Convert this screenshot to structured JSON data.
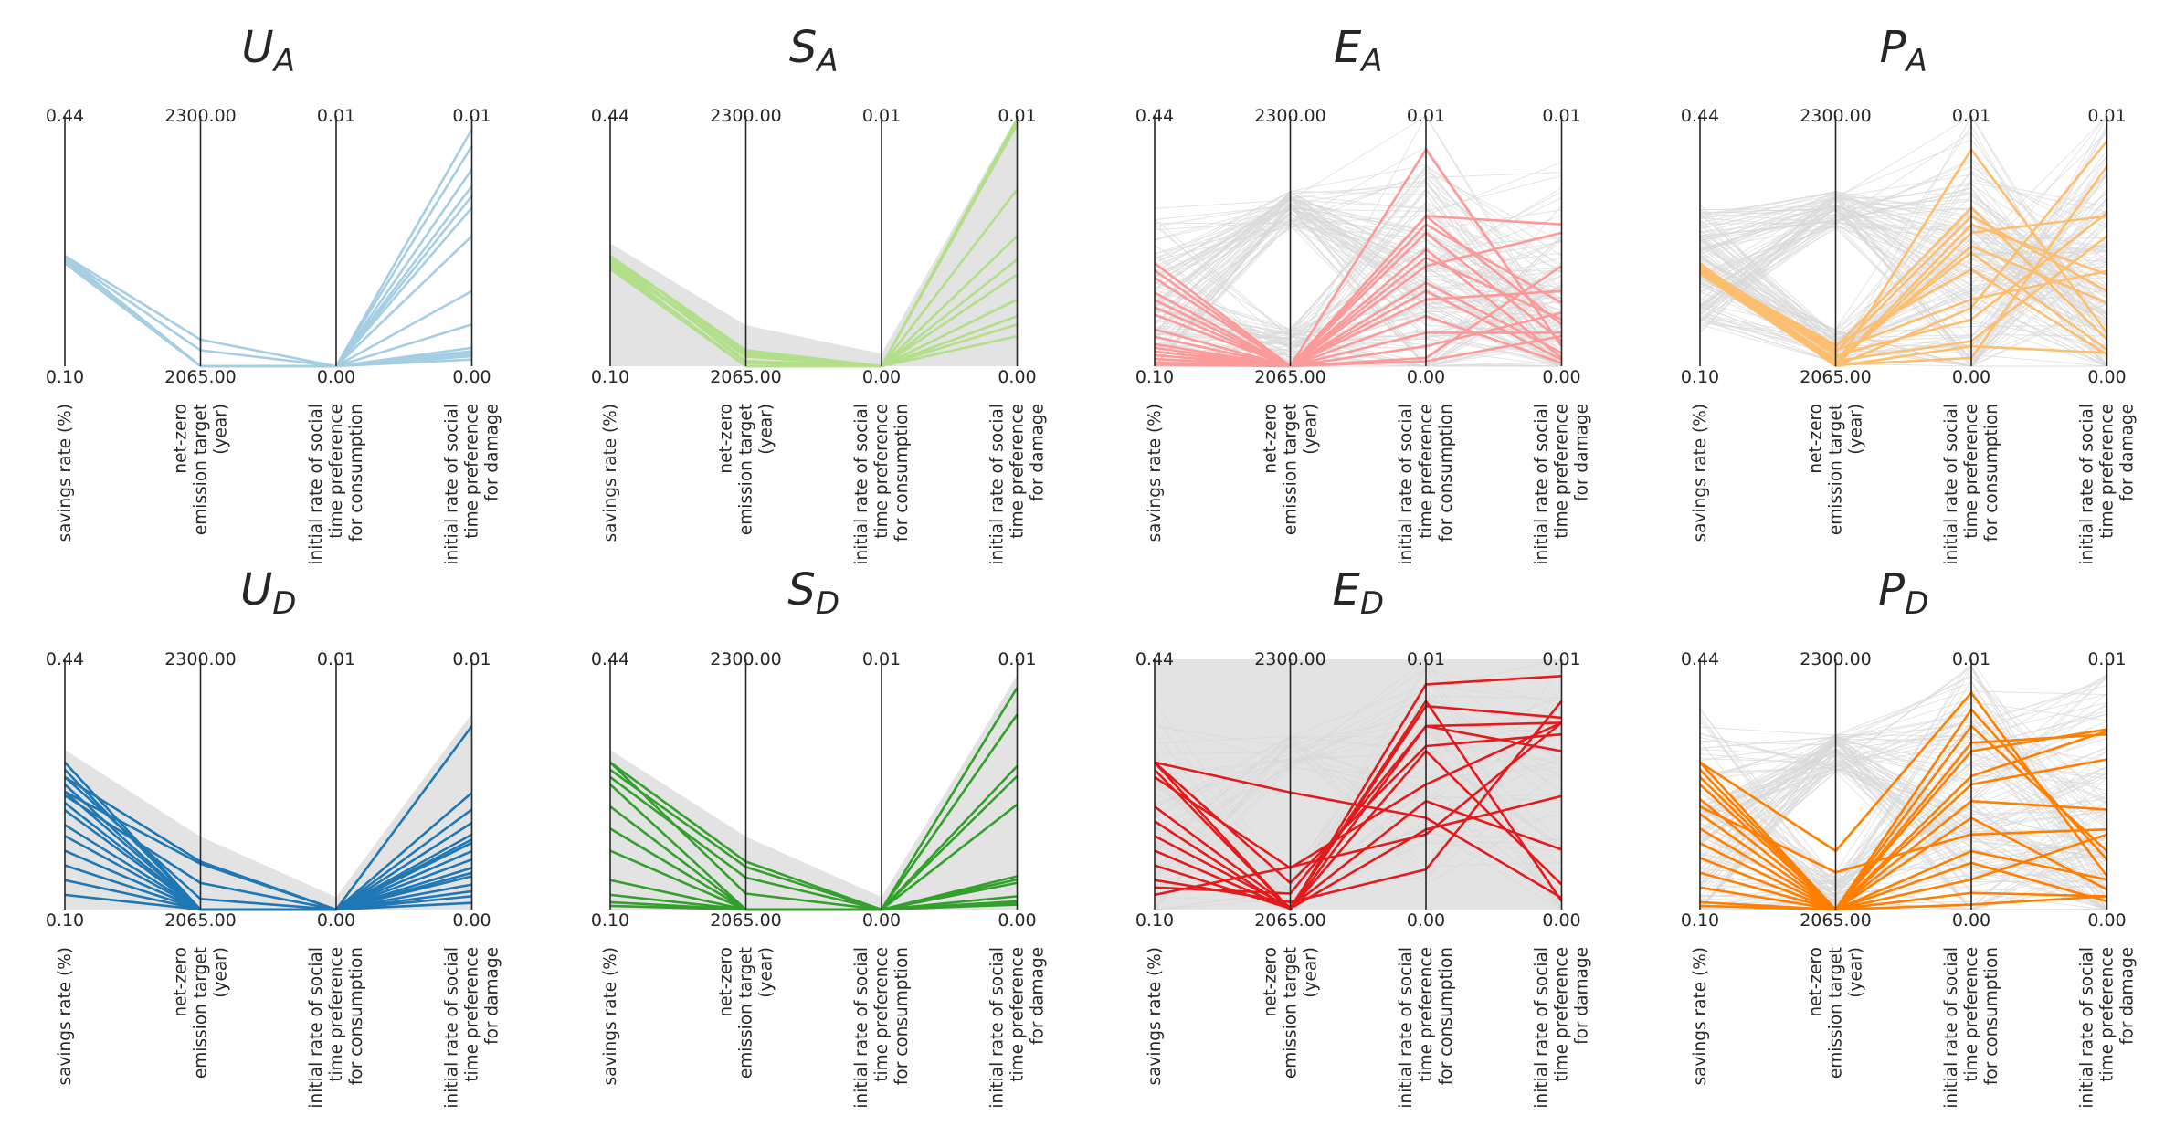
{
  "axes": [
    {
      "label_lines": [
        "savings rate (%)"
      ],
      "max_label": "0.44",
      "min_label": "0.10",
      "range": [
        0.1,
        0.44
      ]
    },
    {
      "label_lines": [
        "net-zero",
        "emission target",
        "(year)"
      ],
      "max_label": "2300.00",
      "min_label": "2065.00",
      "range": [
        2065,
        2300
      ]
    },
    {
      "label_lines": [
        "initial rate of social",
        "time preference",
        "for consumption"
      ],
      "max_label": "0.01",
      "min_label": "0.00",
      "range": [
        0.0,
        0.015
      ]
    },
    {
      "label_lines": [
        "initial rate of social",
        "time preference",
        "for damage"
      ],
      "max_label": "0.01",
      "min_label": "0.00",
      "range": [
        0.0,
        0.015
      ]
    }
  ],
  "chart_data": [
    {
      "type": "parallel-coordinates",
      "title_main": "U",
      "title_sub": "A",
      "color": "#a6cee3",
      "bg_style": "none",
      "lines": [
        [
          0.248,
          2065,
          0.0,
          0.0025
        ],
        [
          0.248,
          2065,
          0.0,
          0.0045
        ],
        [
          0.248,
          2065,
          0.0,
          0.0078
        ],
        [
          0.248,
          2065,
          0.0,
          0.0095
        ],
        [
          0.248,
          2065,
          0.0,
          0.0102
        ],
        [
          0.248,
          2065,
          0.0,
          0.0108
        ],
        [
          0.248,
          2065,
          0.0,
          0.0118
        ],
        [
          0.248,
          2065,
          0.0,
          0.0132
        ],
        [
          0.248,
          2065,
          0.0,
          0.0142
        ],
        [
          0.248,
          2065,
          0.0,
          0.0008
        ],
        [
          0.248,
          2065,
          0.0,
          0.0011
        ],
        [
          0.244,
          2065,
          0.0,
          0.0004
        ],
        [
          0.24,
          2065,
          0.0,
          0.0006
        ],
        [
          0.25,
          2090,
          0.0,
          0.0007
        ],
        [
          0.248,
          2080,
          0.0,
          0.0009
        ]
      ]
    },
    {
      "type": "parallel-coordinates",
      "title_main": "S",
      "title_sub": "A",
      "color": "#b2df8a",
      "bg_style": "fill",
      "lines": [
        [
          0.24,
          2080,
          0.0,
          0.0148
        ],
        [
          0.25,
          2080,
          0.0,
          0.0145
        ],
        [
          0.25,
          2078,
          0.0,
          0.0106
        ],
        [
          0.24,
          2076,
          0.0,
          0.0078
        ],
        [
          0.244,
          2074,
          0.0,
          0.0064
        ],
        [
          0.246,
          2070,
          0.0,
          0.0055
        ],
        [
          0.25,
          2068,
          0.0,
          0.004
        ],
        [
          0.24,
          2065,
          0.0,
          0.004
        ],
        [
          0.236,
          2065,
          0.0,
          0.003
        ],
        [
          0.232,
          2065,
          0.0,
          0.0018
        ],
        [
          0.24,
          2065,
          0.0,
          0.003
        ],
        [
          0.24,
          2065,
          0.0,
          0.0025
        ]
      ]
    },
    {
      "type": "parallel-coordinates",
      "title_main": "E",
      "title_sub": "A",
      "color": "#fb9a99",
      "bg_style": "lines",
      "lines": [
        [
          0.24,
          2065,
          0.013,
          0.0012
        ],
        [
          0.22,
          2065,
          0.009,
          0.0085
        ],
        [
          0.2,
          2065,
          0.008,
          0.0015
        ],
        [
          0.18,
          2065,
          0.006,
          0.008
        ],
        [
          0.17,
          2065,
          0.005,
          0.0008
        ],
        [
          0.15,
          2065,
          0.004,
          0.0045
        ],
        [
          0.14,
          2065,
          0.009,
          0.0025
        ],
        [
          0.13,
          2065,
          0.003,
          0.0002
        ],
        [
          0.125,
          2065,
          0.0085,
          0.0038
        ],
        [
          0.12,
          2065,
          0.0005,
          0.006
        ],
        [
          0.115,
          2065,
          0.002,
          0.002
        ],
        [
          0.11,
          2065,
          0.007,
          0.0005
        ],
        [
          0.105,
          2065,
          0.0003,
          0.0018
        ],
        [
          0.102,
          2065,
          0.0012,
          0.0032
        ],
        [
          0.23,
          2065,
          0.0045,
          0.0004
        ],
        [
          0.19,
          2065,
          0.0065,
          0.0028
        ]
      ]
    },
    {
      "type": "parallel-coordinates",
      "title_main": "P",
      "title_sub": "A",
      "color": "#fdbf6f",
      "bg_style": "lines",
      "lines": [
        [
          0.24,
          2065,
          0.013,
          0.002
        ],
        [
          0.24,
          2065,
          0.008,
          0.009
        ],
        [
          0.235,
          2062,
          0.0035,
          0.0135
        ],
        [
          0.23,
          2066,
          0.0005,
          0.012
        ],
        [
          0.23,
          2085,
          0.0058,
          0.0007
        ],
        [
          0.232,
          2083,
          0.0095,
          0.0016
        ],
        [
          0.236,
          2080,
          0.004,
          0.0057
        ],
        [
          0.234,
          2078,
          0.009,
          0.0045
        ],
        [
          0.238,
          2075,
          0.0028,
          0.0092
        ],
        [
          0.228,
          2072,
          0.0068,
          0.001
        ],
        [
          0.238,
          2070,
          0.0015,
          0.0078
        ],
        [
          0.231,
          2068,
          0.0072,
          0.0038
        ],
        [
          0.234,
          2065,
          0.0012,
          0.0008
        ],
        [
          0.226,
          2066,
          0.0085,
          0.0055
        ]
      ]
    },
    {
      "type": "parallel-coordinates",
      "title_main": "U",
      "title_sub": "D",
      "color": "#1f78b4",
      "bg_style": "fill",
      "lines": [
        [
          0.3,
          2065,
          0.0,
          0.0008
        ],
        [
          0.29,
          2065,
          0.0,
          0.0035
        ],
        [
          0.28,
          2075,
          0.0,
          0.0022
        ],
        [
          0.27,
          2065,
          0.0,
          0.0052
        ],
        [
          0.26,
          2065,
          0.0,
          0.004
        ],
        [
          0.245,
          2065,
          0.0,
          0.003
        ],
        [
          0.235,
          2065,
          0.0,
          0.0025
        ],
        [
          0.215,
          2065,
          0.0,
          0.0015
        ],
        [
          0.2,
          2065,
          0.0,
          0.007
        ],
        [
          0.18,
          2065,
          0.0,
          0.0045
        ],
        [
          0.16,
          2065,
          0.0,
          0.0011
        ],
        [
          0.14,
          2065,
          0.0,
          0.002
        ],
        [
          0.12,
          2065,
          0.0,
          0.0004
        ],
        [
          0.28,
          2110,
          0.0,
          0.0042
        ],
        [
          0.26,
          2108,
          0.0,
          0.011
        ],
        [
          0.255,
          2090,
          0.0,
          0.006
        ]
      ]
    },
    {
      "type": "parallel-coordinates",
      "title_main": "S",
      "title_sub": "D",
      "color": "#33a02c",
      "bg_style": "fill",
      "lines": [
        [
          0.3,
          2110,
          0.0,
          0.0133
        ],
        [
          0.29,
          2105,
          0.0,
          0.0117
        ],
        [
          0.28,
          2095,
          0.0,
          0.0086
        ],
        [
          0.3,
          2080,
          0.0,
          0.008
        ],
        [
          0.27,
          2065,
          0.0,
          0.0063
        ],
        [
          0.24,
          2065,
          0.0,
          0.0018
        ],
        [
          0.21,
          2065,
          0.0,
          0.002
        ],
        [
          0.18,
          2065,
          0.0,
          0.0005
        ],
        [
          0.14,
          2065,
          0.0,
          0.0008
        ],
        [
          0.12,
          2065,
          0.0,
          0.0016
        ],
        [
          0.11,
          2065,
          0.0,
          0.0004
        ],
        [
          0.105,
          2065,
          0.0,
          0.0003
        ]
      ]
    },
    {
      "type": "parallel-coordinates",
      "title_main": "E",
      "title_sub": "D",
      "color": "#e31a1c",
      "bg_style": "both",
      "lines": [
        [
          0.3,
          2065,
          0.0135,
          0.014
        ],
        [
          0.29,
          2065,
          0.011,
          0.0095
        ],
        [
          0.3,
          2090,
          0.0098,
          0.0105
        ],
        [
          0.3,
          2175,
          0.0055,
          0.0007
        ],
        [
          0.28,
          2104,
          0.0075,
          0.0112
        ],
        [
          0.24,
          2067,
          0.0122,
          0.0115
        ],
        [
          0.22,
          2065,
          0.0095,
          0.0015
        ],
        [
          0.2,
          2067,
          0.0065,
          0.0036
        ],
        [
          0.18,
          2066,
          0.0048,
          0.0068
        ],
        [
          0.16,
          2066,
          0.0125,
          0.0005
        ],
        [
          0.14,
          2072,
          0.0024,
          0.0125
        ],
        [
          0.13,
          2080,
          0.011,
          0.0112
        ],
        [
          0.12,
          2105,
          0.0045,
          0.0112
        ]
      ]
    },
    {
      "type": "parallel-coordinates",
      "title_main": "P",
      "title_sub": "D",
      "color": "#ff7f00",
      "bg_style": "lines",
      "lines": [
        [
          0.3,
          2120,
          0.013,
          0.002
        ],
        [
          0.29,
          2065,
          0.01,
          0.0105
        ],
        [
          0.3,
          2065,
          0.0095,
          0.0108
        ],
        [
          0.28,
          2065,
          0.008,
          0.0107
        ],
        [
          0.27,
          2065,
          0.012,
          0.003
        ],
        [
          0.25,
          2065,
          0.0075,
          0.009
        ],
        [
          0.23,
          2065,
          0.011,
          0.0035
        ],
        [
          0.21,
          2065,
          0.0055,
          0.0012
        ],
        [
          0.19,
          2065,
          0.0035,
          0.0018
        ],
        [
          0.17,
          2065,
          0.0018,
          0.0045
        ],
        [
          0.15,
          2065,
          0.001,
          0.0008
        ],
        [
          0.13,
          2065,
          0.0003,
          0.0008
        ],
        [
          0.11,
          2065,
          0.0028,
          0.0005
        ],
        [
          0.105,
          2065,
          0.0065,
          0.006
        ],
        [
          0.24,
          2100,
          0.0045,
          0.0048
        ]
      ]
    }
  ]
}
